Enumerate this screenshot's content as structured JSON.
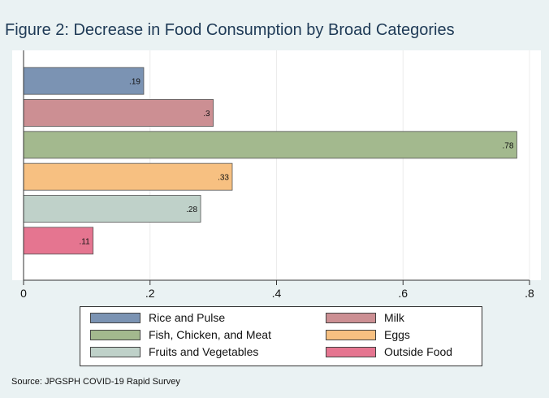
{
  "chart_data": {
    "type": "bar",
    "orientation": "horizontal",
    "title": "Figure 2: Decrease in Food Consumption by Broad Categories",
    "categories": [
      "Rice and Pulse",
      "Milk",
      "Fish, Chicken, and Meat",
      "Eggs",
      "Fruits and Vegetables",
      "Outside Food"
    ],
    "values": [
      0.19,
      0.3,
      0.78,
      0.33,
      0.28,
      0.11
    ],
    "data_labels": [
      ".19",
      ".3",
      ".78",
      ".33",
      ".28",
      ".11"
    ],
    "colors": [
      "#7b93b3",
      "#cc8f93",
      "#a3b98e",
      "#f7c081",
      "#bfd1c9",
      "#e57590"
    ],
    "xlim": [
      0,
      0.8
    ],
    "x_ticks": [
      "0",
      ".2",
      ".4",
      ".6",
      ".8"
    ],
    "grid": true,
    "legend_position": "bottom",
    "source": "Source: JPGSPH COVID-19 Rapid Survey"
  }
}
